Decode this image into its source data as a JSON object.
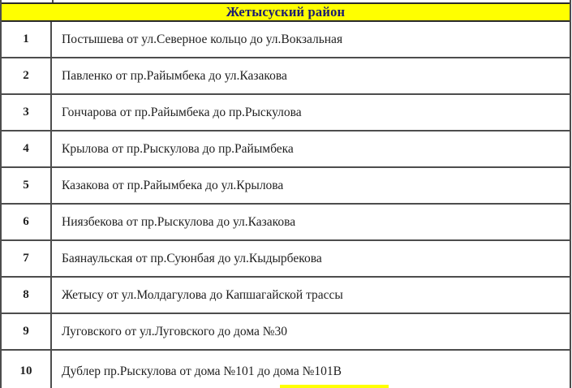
{
  "section_header": {
    "title": "Жетысуский район"
  },
  "table": {
    "rows": [
      {
        "num": "1",
        "street": "Постышева от ул.Северное кольцо до ул.Вокзальная"
      },
      {
        "num": "2",
        "street": "Павленко от пр.Райымбека до ул.Казакова"
      },
      {
        "num": "3",
        "street": "Гончарова от пр.Райымбека до пр.Рыскулова"
      },
      {
        "num": "4",
        "street": "Крылова от пр.Рыскулова до пр.Райымбека"
      },
      {
        "num": "5",
        "street": "Казакова от пр.Райымбека до ул.Крылова"
      },
      {
        "num": "6",
        "street": "Ниязбекова от пр.Рыскулова до ул.Казакова"
      },
      {
        "num": "7",
        "street": "Баянаульская от пр.Суюнбая до ул.Кыдырбекова"
      },
      {
        "num": "8",
        "street": "Жетысу от ул.Молдагулова до Капшагайской трассы"
      },
      {
        "num": "9",
        "street": "Луговского от ул.Луговского до дома №30"
      },
      {
        "num": "10",
        "street": "Дублер пр.Рыскулова от дома №101 до дома №101В"
      }
    ]
  },
  "colors": {
    "highlight-yellow": "#ffff00",
    "grid-line": "#4d4d4d",
    "header-border": "#2a2a2a",
    "header-text": "#1b1b70",
    "body-text": "#1f1f1f"
  }
}
